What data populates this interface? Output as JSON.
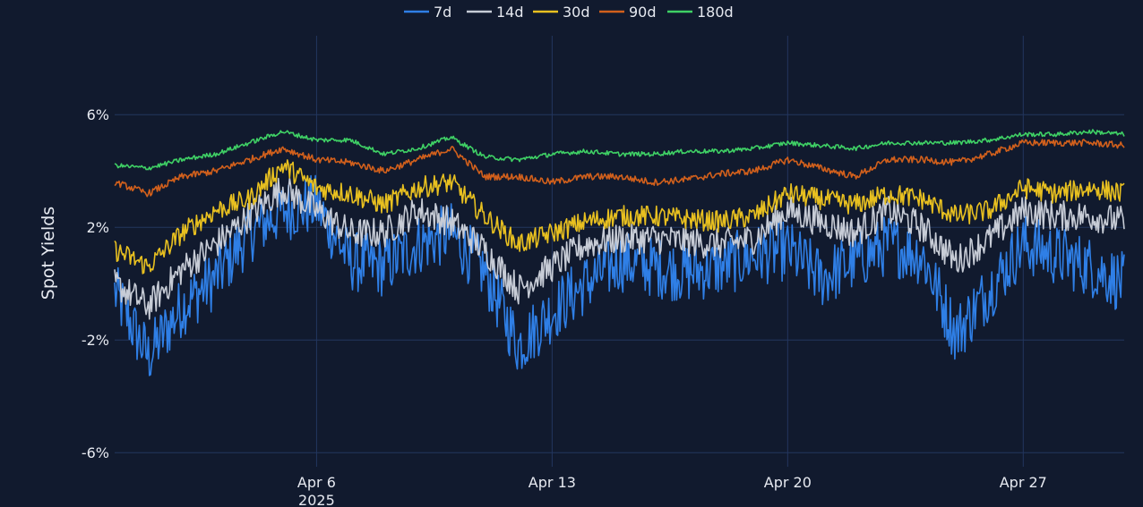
{
  "chart_data": {
    "type": "line",
    "title": "",
    "xlabel": "",
    "ylabel": "Spot Yields",
    "x_range": [
      "2025-03-31",
      "2025-04-30"
    ],
    "ylim": [
      -6.5,
      8.8
    ],
    "grid": true,
    "legend_position": "top-center",
    "y_ticks": [
      {
        "value": 6,
        "label": "6%"
      },
      {
        "value": 2,
        "label": "2%"
      },
      {
        "value": -2,
        "label": "-2%"
      },
      {
        "value": -6,
        "label": "-6%"
      }
    ],
    "x_ticks": [
      {
        "date": "2025-04-06",
        "label": "Apr 6",
        "sublabel": "2025"
      },
      {
        "date": "2025-04-13",
        "label": "Apr 13",
        "sublabel": ""
      },
      {
        "date": "2025-04-20",
        "label": "Apr 20",
        "sublabel": ""
      },
      {
        "date": "2025-04-27",
        "label": "Apr 27",
        "sublabel": ""
      }
    ],
    "series": [
      {
        "name": "7d",
        "color": "#2f7fe6",
        "points": [
          [
            "2025-03-31",
            -0.3
          ],
          [
            "2025-04-01",
            -2.6
          ],
          [
            "2025-04-02",
            -0.8
          ],
          [
            "2025-04-03",
            0.2
          ],
          [
            "2025-04-04",
            1.8
          ],
          [
            "2025-04-05",
            2.6
          ],
          [
            "2025-04-06",
            2.8
          ],
          [
            "2025-04-07",
            0.8
          ],
          [
            "2025-04-08",
            0.6
          ],
          [
            "2025-04-09",
            1.4
          ],
          [
            "2025-04-10",
            1.8
          ],
          [
            "2025-04-11",
            0.4
          ],
          [
            "2025-04-12",
            -2.2
          ],
          [
            "2025-04-13",
            -1.0
          ],
          [
            "2025-04-14",
            0.0
          ],
          [
            "2025-04-15",
            0.8
          ],
          [
            "2025-04-16",
            0.6
          ],
          [
            "2025-04-17",
            0.4
          ],
          [
            "2025-04-18",
            0.6
          ],
          [
            "2025-04-19",
            1.0
          ],
          [
            "2025-04-20",
            1.2
          ],
          [
            "2025-04-21",
            0.2
          ],
          [
            "2025-04-22",
            0.8
          ],
          [
            "2025-04-23",
            1.4
          ],
          [
            "2025-04-24",
            1.0
          ],
          [
            "2025-04-25",
            -1.8
          ],
          [
            "2025-04-26",
            -0.2
          ],
          [
            "2025-04-27",
            1.4
          ],
          [
            "2025-04-28",
            1.0
          ],
          [
            "2025-04-29",
            0.6
          ],
          [
            "2025-04-30",
            0.0
          ]
        ]
      },
      {
        "name": "14d",
        "color": "#c7ccd6",
        "points": [
          [
            "2025-03-31",
            0.0
          ],
          [
            "2025-04-01",
            -0.8
          ],
          [
            "2025-04-02",
            0.5
          ],
          [
            "2025-04-03",
            1.4
          ],
          [
            "2025-04-04",
            2.4
          ],
          [
            "2025-04-05",
            3.4
          ],
          [
            "2025-04-06",
            2.6
          ],
          [
            "2025-04-07",
            1.8
          ],
          [
            "2025-04-08",
            1.8
          ],
          [
            "2025-04-09",
            2.6
          ],
          [
            "2025-04-10",
            2.2
          ],
          [
            "2025-04-11",
            1.2
          ],
          [
            "2025-04-12",
            -0.2
          ],
          [
            "2025-04-13",
            0.6
          ],
          [
            "2025-04-14",
            1.4
          ],
          [
            "2025-04-15",
            1.6
          ],
          [
            "2025-04-16",
            1.6
          ],
          [
            "2025-04-17",
            1.5
          ],
          [
            "2025-04-18",
            1.4
          ],
          [
            "2025-04-19",
            1.6
          ],
          [
            "2025-04-20",
            2.6
          ],
          [
            "2025-04-21",
            2.2
          ],
          [
            "2025-04-22",
            1.8
          ],
          [
            "2025-04-23",
            2.6
          ],
          [
            "2025-04-24",
            2.0
          ],
          [
            "2025-04-25",
            0.8
          ],
          [
            "2025-04-26",
            1.6
          ],
          [
            "2025-04-27",
            2.6
          ],
          [
            "2025-04-28",
            2.4
          ],
          [
            "2025-04-29",
            2.4
          ],
          [
            "2025-04-30",
            2.2
          ]
        ]
      },
      {
        "name": "30d",
        "color": "#e8c020",
        "points": [
          [
            "2025-03-31",
            1.2
          ],
          [
            "2025-04-01",
            0.6
          ],
          [
            "2025-04-02",
            1.8
          ],
          [
            "2025-04-03",
            2.6
          ],
          [
            "2025-04-04",
            3.0
          ],
          [
            "2025-04-05",
            4.2
          ],
          [
            "2025-04-06",
            3.4
          ],
          [
            "2025-04-07",
            3.2
          ],
          [
            "2025-04-08",
            2.8
          ],
          [
            "2025-04-09",
            3.4
          ],
          [
            "2025-04-10",
            3.6
          ],
          [
            "2025-04-11",
            2.4
          ],
          [
            "2025-04-12",
            1.4
          ],
          [
            "2025-04-13",
            1.8
          ],
          [
            "2025-04-14",
            2.2
          ],
          [
            "2025-04-15",
            2.4
          ],
          [
            "2025-04-16",
            2.4
          ],
          [
            "2025-04-17",
            2.3
          ],
          [
            "2025-04-18",
            2.2
          ],
          [
            "2025-04-19",
            2.4
          ],
          [
            "2025-04-20",
            3.2
          ],
          [
            "2025-04-21",
            3.0
          ],
          [
            "2025-04-22",
            2.8
          ],
          [
            "2025-04-23",
            3.2
          ],
          [
            "2025-04-24",
            3.0
          ],
          [
            "2025-04-25",
            2.4
          ],
          [
            "2025-04-26",
            2.6
          ],
          [
            "2025-04-27",
            3.4
          ],
          [
            "2025-04-28",
            3.2
          ],
          [
            "2025-04-29",
            3.4
          ],
          [
            "2025-04-30",
            3.2
          ]
        ]
      },
      {
        "name": "90d",
        "color": "#d2601c",
        "points": [
          [
            "2025-03-31",
            3.6
          ],
          [
            "2025-04-01",
            3.2
          ],
          [
            "2025-04-02",
            3.8
          ],
          [
            "2025-04-03",
            4.0
          ],
          [
            "2025-04-04",
            4.4
          ],
          [
            "2025-04-05",
            4.8
          ],
          [
            "2025-04-06",
            4.4
          ],
          [
            "2025-04-07",
            4.3
          ],
          [
            "2025-04-08",
            4.0
          ],
          [
            "2025-04-09",
            4.4
          ],
          [
            "2025-04-10",
            4.8
          ],
          [
            "2025-04-11",
            3.8
          ],
          [
            "2025-04-12",
            3.8
          ],
          [
            "2025-04-13",
            3.6
          ],
          [
            "2025-04-14",
            3.8
          ],
          [
            "2025-04-15",
            3.8
          ],
          [
            "2025-04-16",
            3.6
          ],
          [
            "2025-04-17",
            3.7
          ],
          [
            "2025-04-18",
            3.9
          ],
          [
            "2025-04-19",
            4.0
          ],
          [
            "2025-04-20",
            4.4
          ],
          [
            "2025-04-21",
            4.1
          ],
          [
            "2025-04-22",
            3.8
          ],
          [
            "2025-04-23",
            4.4
          ],
          [
            "2025-04-24",
            4.4
          ],
          [
            "2025-04-25",
            4.3
          ],
          [
            "2025-04-26",
            4.6
          ],
          [
            "2025-04-27",
            5.0
          ],
          [
            "2025-04-28",
            5.0
          ],
          [
            "2025-04-29",
            5.0
          ],
          [
            "2025-04-30",
            4.9
          ]
        ]
      },
      {
        "name": "180d",
        "color": "#3fd165",
        "points": [
          [
            "2025-03-31",
            4.2
          ],
          [
            "2025-04-01",
            4.1
          ],
          [
            "2025-04-02",
            4.4
          ],
          [
            "2025-04-03",
            4.6
          ],
          [
            "2025-04-04",
            5.0
          ],
          [
            "2025-04-05",
            5.4
          ],
          [
            "2025-04-06",
            5.1
          ],
          [
            "2025-04-07",
            5.1
          ],
          [
            "2025-04-08",
            4.6
          ],
          [
            "2025-04-09",
            4.8
          ],
          [
            "2025-04-10",
            5.2
          ],
          [
            "2025-04-11",
            4.5
          ],
          [
            "2025-04-12",
            4.4
          ],
          [
            "2025-04-13",
            4.6
          ],
          [
            "2025-04-14",
            4.7
          ],
          [
            "2025-04-15",
            4.6
          ],
          [
            "2025-04-16",
            4.6
          ],
          [
            "2025-04-17",
            4.7
          ],
          [
            "2025-04-18",
            4.7
          ],
          [
            "2025-04-19",
            4.8
          ],
          [
            "2025-04-20",
            5.0
          ],
          [
            "2025-04-21",
            4.9
          ],
          [
            "2025-04-22",
            4.8
          ],
          [
            "2025-04-23",
            5.0
          ],
          [
            "2025-04-24",
            5.0
          ],
          [
            "2025-04-25",
            5.0
          ],
          [
            "2025-04-26",
            5.1
          ],
          [
            "2025-04-27",
            5.3
          ],
          [
            "2025-04-28",
            5.3
          ],
          [
            "2025-04-29",
            5.4
          ],
          [
            "2025-04-30",
            5.3
          ]
        ]
      }
    ]
  }
}
